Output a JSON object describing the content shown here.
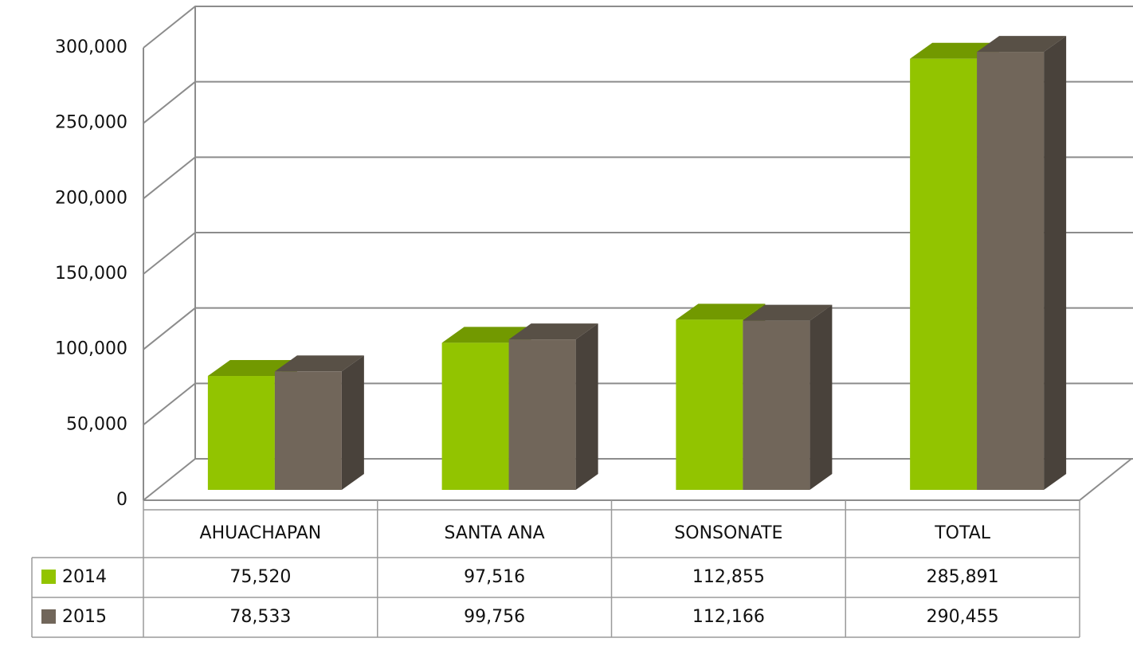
{
  "chart_data": {
    "type": "bar3d",
    "categories": [
      "AHUACHAPAN",
      "SANTA ANA",
      "SONSONATE",
      "TOTAL"
    ],
    "series": [
      {
        "name": "2014",
        "color": "#92c400",
        "values": [
          75520,
          97516,
          112855,
          285891
        ],
        "value_labels": [
          "75,520",
          "97,516",
          "112,855",
          "285,891"
        ]
      },
      {
        "name": "2015",
        "color": "#71665a",
        "values": [
          78533,
          99756,
          112166,
          290455
        ],
        "value_labels": [
          "78,533",
          "99,756",
          "112,166",
          "290,455"
        ]
      }
    ],
    "ylim": [
      0,
      300000
    ],
    "yticks": [
      {
        "value": 0,
        "label": "0"
      },
      {
        "value": 50000,
        "label": "50,000"
      },
      {
        "value": 100000,
        "label": "100,000"
      },
      {
        "value": 150000,
        "label": "150,000"
      },
      {
        "value": 200000,
        "label": "200,000"
      },
      {
        "value": 250000,
        "label": "250,000"
      },
      {
        "value": 300000,
        "label": "300,000"
      }
    ],
    "grid": true
  }
}
